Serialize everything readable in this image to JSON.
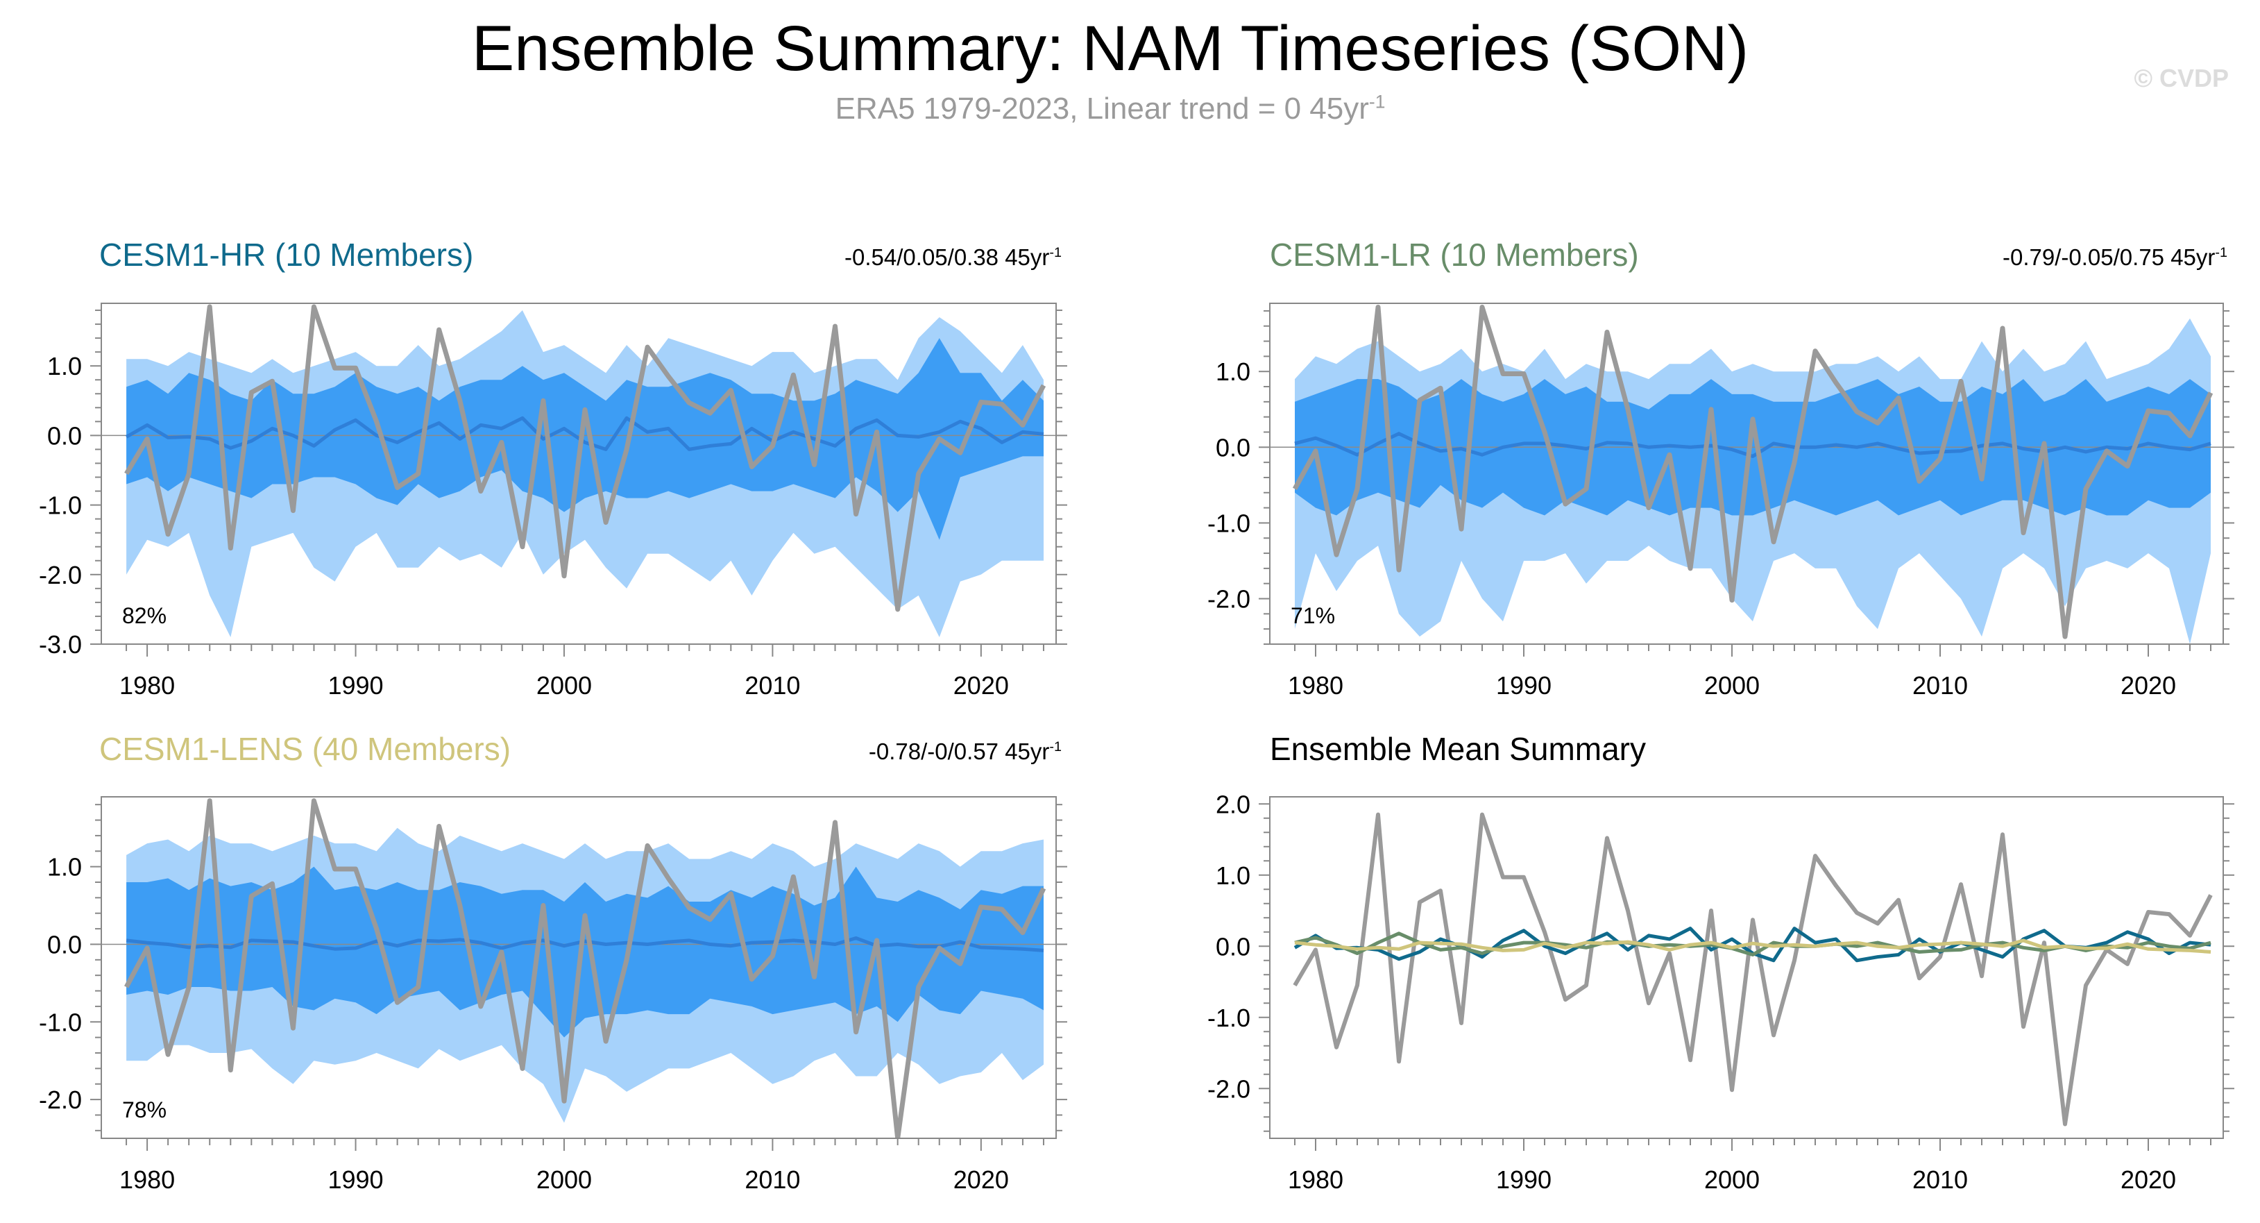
{
  "title": "Ensemble Summary: NAM Timeseries (SON)",
  "subtitle": {
    "text": "ERA5 1979-2023, Linear trend = 0 45yr",
    "exp": "-1"
  },
  "copyright": "© CVDP",
  "colors": {
    "outer_band": "#a6d2fb",
    "inner_band": "#3d9df4",
    "mean_line": "#2f7fd8",
    "obs_line": "#9a9a9a",
    "hr": "#0f6a8c",
    "lr": "#688d69",
    "lens": "#cfc57c",
    "frame": "#888888"
  },
  "obs_years_note": "shared",
  "chart_data": [
    {
      "type": "area",
      "title": "CESM1-HR (10 Members)",
      "title_color": "#0f6a8c",
      "trend": {
        "text": "-0.54/0.05/0.38 45yr",
        "exp": "-1"
      },
      "percent_label": "82%",
      "ylim": [
        -3.0,
        1.9
      ],
      "yticks": [
        -3.0,
        -2.0,
        -1.0,
        0.0,
        1.0
      ],
      "ytick_labels": [
        "-3.0",
        "-2.0",
        "-1.0",
        "0.0",
        "1.0"
      ],
      "xticks": [
        1980,
        1990,
        2000,
        2010,
        2020
      ],
      "xtick_labels": [
        "1980",
        "1990",
        "2000",
        "2010",
        "2020"
      ],
      "x_start": 1979,
      "x_end": 2023,
      "outer_upper": [
        1.1,
        1.1,
        1.0,
        1.2,
        1.1,
        1.0,
        0.9,
        1.1,
        0.9,
        1.0,
        1.1,
        1.2,
        1.0,
        1.0,
        1.3,
        1.0,
        1.1,
        1.3,
        1.5,
        1.8,
        1.2,
        1.3,
        1.1,
        0.9,
        1.3,
        1.0,
        1.4,
        1.3,
        1.2,
        1.1,
        1.0,
        1.2,
        1.2,
        0.9,
        1.0,
        1.1,
        1.1,
        0.8,
        1.4,
        1.7,
        1.5,
        1.2,
        0.9,
        1.3,
        0.8
      ],
      "inner_upper": [
        0.7,
        0.8,
        0.6,
        0.9,
        0.8,
        0.6,
        0.5,
        0.8,
        0.6,
        0.6,
        0.7,
        0.9,
        0.7,
        0.6,
        0.7,
        0.5,
        0.7,
        0.8,
        0.8,
        1.0,
        0.8,
        0.9,
        0.7,
        0.5,
        0.8,
        0.7,
        0.7,
        0.8,
        0.9,
        0.8,
        0.6,
        0.6,
        0.5,
        0.5,
        0.6,
        0.8,
        0.7,
        0.6,
        0.9,
        1.4,
        0.9,
        0.9,
        0.5,
        0.8,
        0.5
      ],
      "inner_lower": [
        -0.7,
        -0.6,
        -0.8,
        -0.6,
        -0.7,
        -0.8,
        -0.9,
        -0.7,
        -0.7,
        -0.6,
        -0.6,
        -0.7,
        -0.9,
        -1.0,
        -0.7,
        -0.9,
        -0.8,
        -0.6,
        -0.5,
        -0.8,
        -0.9,
        -1.1,
        -0.9,
        -0.8,
        -0.9,
        -0.9,
        -0.8,
        -0.9,
        -0.8,
        -0.7,
        -0.8,
        -0.8,
        -0.7,
        -0.8,
        -0.9,
        -0.6,
        -0.8,
        -1.1,
        -0.8,
        -1.5,
        -0.6,
        -0.5,
        -0.4,
        -0.3,
        -0.3
      ],
      "outer_lower": [
        -2.0,
        -1.5,
        -1.6,
        -1.4,
        -2.3,
        -2.9,
        -1.6,
        -1.5,
        -1.4,
        -1.9,
        -2.1,
        -1.6,
        -1.4,
        -1.9,
        -1.9,
        -1.6,
        -1.8,
        -1.7,
        -1.9,
        -1.4,
        -2.0,
        -1.7,
        -1.5,
        -1.9,
        -2.2,
        -1.7,
        -1.7,
        -1.9,
        -2.1,
        -1.8,
        -2.3,
        -1.8,
        -1.4,
        -1.7,
        -1.6,
        -1.9,
        -2.2,
        -2.5,
        -2.3,
        -2.9,
        -2.1,
        -2.0,
        -1.8,
        -1.8,
        -1.8
      ],
      "ens_mean": [
        -0.02,
        0.15,
        -0.03,
        -0.02,
        -0.05,
        -0.18,
        -0.08,
        0.1,
        0.0,
        -0.15,
        0.08,
        0.22,
        0.0,
        -0.1,
        0.05,
        0.18,
        -0.05,
        0.15,
        0.1,
        0.25,
        -0.05,
        0.1,
        -0.1,
        -0.2,
        0.25,
        0.05,
        0.1,
        -0.2,
        -0.15,
        -0.12,
        0.1,
        -0.08,
        0.05,
        -0.05,
        -0.15,
        0.1,
        0.22,
        0.0,
        -0.02,
        0.05,
        0.2,
        0.1,
        -0.1,
        0.05,
        0.02
      ]
    },
    {
      "type": "area",
      "title": "CESM1-LR (10 Members)",
      "title_color": "#688d69",
      "trend": {
        "text": "-0.79/-0.05/0.75 45yr",
        "exp": "-1"
      },
      "percent_label": "71%",
      "ylim": [
        -2.6,
        1.9
      ],
      "yticks": [
        -2.0,
        -1.0,
        0.0,
        1.0
      ],
      "ytick_labels": [
        "-2.0",
        "-1.0",
        "0.0",
        "1.0"
      ],
      "xticks": [
        1980,
        1990,
        2000,
        2010,
        2020
      ],
      "xtick_labels": [
        "1980",
        "1990",
        "2000",
        "2010",
        "2020"
      ],
      "x_start": 1979,
      "x_end": 2023,
      "outer_upper": [
        0.9,
        1.2,
        1.1,
        1.3,
        1.4,
        1.2,
        1.0,
        1.1,
        1.3,
        1.0,
        1.1,
        1.0,
        1.3,
        0.9,
        1.1,
        1.0,
        1.0,
        0.9,
        1.1,
        1.1,
        1.3,
        1.0,
        1.1,
        1.0,
        1.0,
        1.0,
        1.1,
        1.1,
        1.2,
        1.0,
        1.2,
        0.9,
        0.9,
        1.4,
        1.0,
        1.3,
        1.0,
        1.1,
        1.4,
        0.9,
        1.0,
        1.1,
        1.3,
        1.7,
        1.2
      ],
      "inner_upper": [
        0.6,
        0.7,
        0.8,
        0.9,
        0.9,
        0.8,
        0.6,
        0.7,
        0.9,
        0.7,
        0.6,
        0.7,
        0.9,
        0.7,
        0.8,
        0.6,
        0.6,
        0.5,
        0.7,
        0.7,
        0.9,
        0.7,
        0.7,
        0.6,
        0.6,
        0.6,
        0.7,
        0.8,
        0.9,
        0.7,
        0.8,
        0.6,
        0.6,
        0.8,
        0.7,
        0.9,
        0.6,
        0.7,
        0.9,
        0.6,
        0.7,
        0.8,
        0.7,
        0.9,
        0.7
      ],
      "inner_lower": [
        -0.6,
        -0.8,
        -0.9,
        -0.7,
        -0.6,
        -0.7,
        -0.8,
        -0.5,
        -0.7,
        -0.8,
        -0.6,
        -0.8,
        -0.9,
        -0.7,
        -0.8,
        -0.9,
        -0.7,
        -0.8,
        -0.9,
        -0.8,
        -0.8,
        -0.9,
        -0.9,
        -0.8,
        -0.7,
        -0.8,
        -0.9,
        -0.8,
        -0.7,
        -0.9,
        -0.8,
        -0.7,
        -0.9,
        -0.8,
        -0.7,
        -0.7,
        -0.8,
        -0.9,
        -0.8,
        -0.9,
        -0.9,
        -0.7,
        -0.8,
        -0.8,
        -0.6
      ],
      "outer_lower": [
        -2.4,
        -1.4,
        -1.9,
        -1.5,
        -1.3,
        -2.2,
        -2.5,
        -2.3,
        -1.5,
        -2.0,
        -2.3,
        -1.5,
        -1.5,
        -1.4,
        -1.8,
        -1.5,
        -1.5,
        -1.3,
        -1.5,
        -1.6,
        -1.6,
        -2.0,
        -2.3,
        -1.5,
        -1.4,
        -1.6,
        -1.6,
        -2.1,
        -2.4,
        -1.6,
        -1.4,
        -1.7,
        -2.0,
        -2.5,
        -1.6,
        -1.4,
        -1.6,
        -2.1,
        -1.6,
        -1.5,
        -1.6,
        -1.4,
        -1.6,
        -2.6,
        -1.4
      ],
      "ens_mean": [
        0.05,
        0.12,
        0.02,
        -0.1,
        0.05,
        0.18,
        0.05,
        -0.05,
        -0.02,
        -0.1,
        0.0,
        0.05,
        0.05,
        0.02,
        -0.02,
        0.06,
        0.05,
        0.0,
        0.02,
        0.0,
        0.02,
        -0.03,
        -0.12,
        0.05,
        0.0,
        0.0,
        0.03,
        0.0,
        0.05,
        -0.02,
        -0.08,
        -0.06,
        -0.05,
        0.02,
        0.05,
        -0.02,
        -0.06,
        0.0,
        -0.06,
        0.0,
        -0.02,
        0.05,
        0.0,
        -0.03,
        0.05
      ]
    },
    {
      "type": "area",
      "title": "CESM1-LENS (40 Members)",
      "title_color": "#cfc57c",
      "trend": {
        "text": "-0.78/-0/0.57 45yr",
        "exp": "-1"
      },
      "percent_label": "78%",
      "ylim": [
        -2.5,
        1.9
      ],
      "yticks": [
        -2.0,
        -1.0,
        0.0,
        1.0
      ],
      "ytick_labels": [
        "-2.0",
        "-1.0",
        "0.0",
        "1.0"
      ],
      "xticks": [
        1980,
        1990,
        2000,
        2010,
        2020
      ],
      "xtick_labels": [
        "1980",
        "1990",
        "2000",
        "2010",
        "2020"
      ],
      "x_start": 1979,
      "x_end": 2023,
      "outer_upper": [
        1.15,
        1.3,
        1.35,
        1.2,
        1.4,
        1.3,
        1.3,
        1.2,
        1.3,
        1.4,
        1.3,
        1.3,
        1.2,
        1.5,
        1.3,
        1.2,
        1.4,
        1.3,
        1.2,
        1.3,
        1.2,
        1.1,
        1.3,
        1.1,
        1.2,
        1.2,
        1.3,
        1.1,
        1.1,
        1.2,
        1.1,
        1.3,
        1.2,
        1.0,
        1.1,
        1.3,
        1.2,
        1.1,
        1.3,
        1.2,
        1.0,
        1.2,
        1.2,
        1.3,
        1.35
      ],
      "inner_upper": [
        0.8,
        0.8,
        0.85,
        0.7,
        0.85,
        0.75,
        0.8,
        0.7,
        0.8,
        1.0,
        0.7,
        0.75,
        0.7,
        0.8,
        0.7,
        0.7,
        0.8,
        0.75,
        0.65,
        0.7,
        0.7,
        0.55,
        0.8,
        0.55,
        0.65,
        0.6,
        0.75,
        0.55,
        0.55,
        0.7,
        0.6,
        0.75,
        0.65,
        0.5,
        0.6,
        1.0,
        0.6,
        0.55,
        0.7,
        0.6,
        0.45,
        0.7,
        0.65,
        0.75,
        0.75
      ],
      "inner_lower": [
        -0.65,
        -0.6,
        -0.65,
        -0.55,
        -0.55,
        -0.6,
        -0.6,
        -0.55,
        -0.8,
        -0.85,
        -0.7,
        -0.75,
        -0.9,
        -0.7,
        -0.65,
        -0.6,
        -0.85,
        -0.75,
        -0.65,
        -0.6,
        -0.9,
        -1.2,
        -0.95,
        -0.9,
        -0.9,
        -0.85,
        -0.9,
        -0.9,
        -0.7,
        -0.75,
        -0.8,
        -0.9,
        -0.85,
        -0.8,
        -0.75,
        -0.9,
        -0.8,
        -1.0,
        -0.65,
        -0.85,
        -0.9,
        -0.6,
        -0.65,
        -0.7,
        -0.85
      ],
      "outer_lower": [
        -1.5,
        -1.5,
        -1.3,
        -1.3,
        -1.4,
        -1.4,
        -1.35,
        -1.6,
        -1.8,
        -1.5,
        -1.55,
        -1.5,
        -1.4,
        -1.5,
        -1.6,
        -1.35,
        -1.5,
        -1.4,
        -1.3,
        -1.6,
        -1.8,
        -2.3,
        -1.6,
        -1.7,
        -1.9,
        -1.75,
        -1.6,
        -1.6,
        -1.5,
        -1.4,
        -1.6,
        -1.8,
        -1.7,
        -1.5,
        -1.4,
        -1.7,
        -1.7,
        -1.4,
        -1.55,
        -1.8,
        -1.7,
        -1.65,
        -1.4,
        -1.75,
        -1.55
      ],
      "ens_mean": [
        0.05,
        0.02,
        0.0,
        -0.04,
        -0.02,
        -0.04,
        0.05,
        0.04,
        0.03,
        -0.02,
        -0.06,
        -0.05,
        0.04,
        -0.02,
        0.05,
        0.04,
        0.06,
        0.02,
        -0.05,
        0.02,
        0.05,
        -0.02,
        0.04,
        0.0,
        0.02,
        0.0,
        0.03,
        0.05,
        0.0,
        -0.02,
        0.02,
        0.03,
        0.05,
        0.03,
        0.0,
        0.08,
        -0.02,
        0.0,
        -0.03,
        -0.03,
        0.03,
        -0.04,
        -0.05,
        -0.06,
        -0.08
      ]
    },
    {
      "type": "line",
      "title": "Ensemble Mean Summary",
      "title_color": "#000000",
      "ylim": [
        -2.7,
        2.1
      ],
      "yticks": [
        -2.0,
        -1.0,
        0.0,
        1.0,
        2.0
      ],
      "ytick_labels": [
        "-2.0",
        "-1.0",
        "0.0",
        "1.0",
        "2.0"
      ],
      "xticks": [
        1980,
        1990,
        2000,
        2010,
        2020
      ],
      "xtick_labels": [
        "1980",
        "1990",
        "2000",
        "2010",
        "2020"
      ],
      "x_start": 1979,
      "x_end": 2023,
      "series_refs": [
        "obs",
        "hr",
        "lr",
        "lens"
      ]
    }
  ],
  "obs": [
    -0.55,
    -0.05,
    -1.42,
    -0.55,
    1.85,
    -1.62,
    0.62,
    0.78,
    -1.08,
    1.85,
    0.97,
    0.97,
    0.2,
    -0.75,
    -0.55,
    1.52,
    0.5,
    -0.8,
    -0.1,
    -1.6,
    0.5,
    -2.02,
    0.37,
    -1.25,
    -0.2,
    1.27,
    0.85,
    0.47,
    0.32,
    0.65,
    -0.45,
    -0.15,
    0.87,
    -0.42,
    1.57,
    -1.13,
    0.05,
    -2.5,
    -0.55,
    -0.05,
    -0.25,
    0.48,
    0.45,
    0.15,
    0.72
  ]
}
